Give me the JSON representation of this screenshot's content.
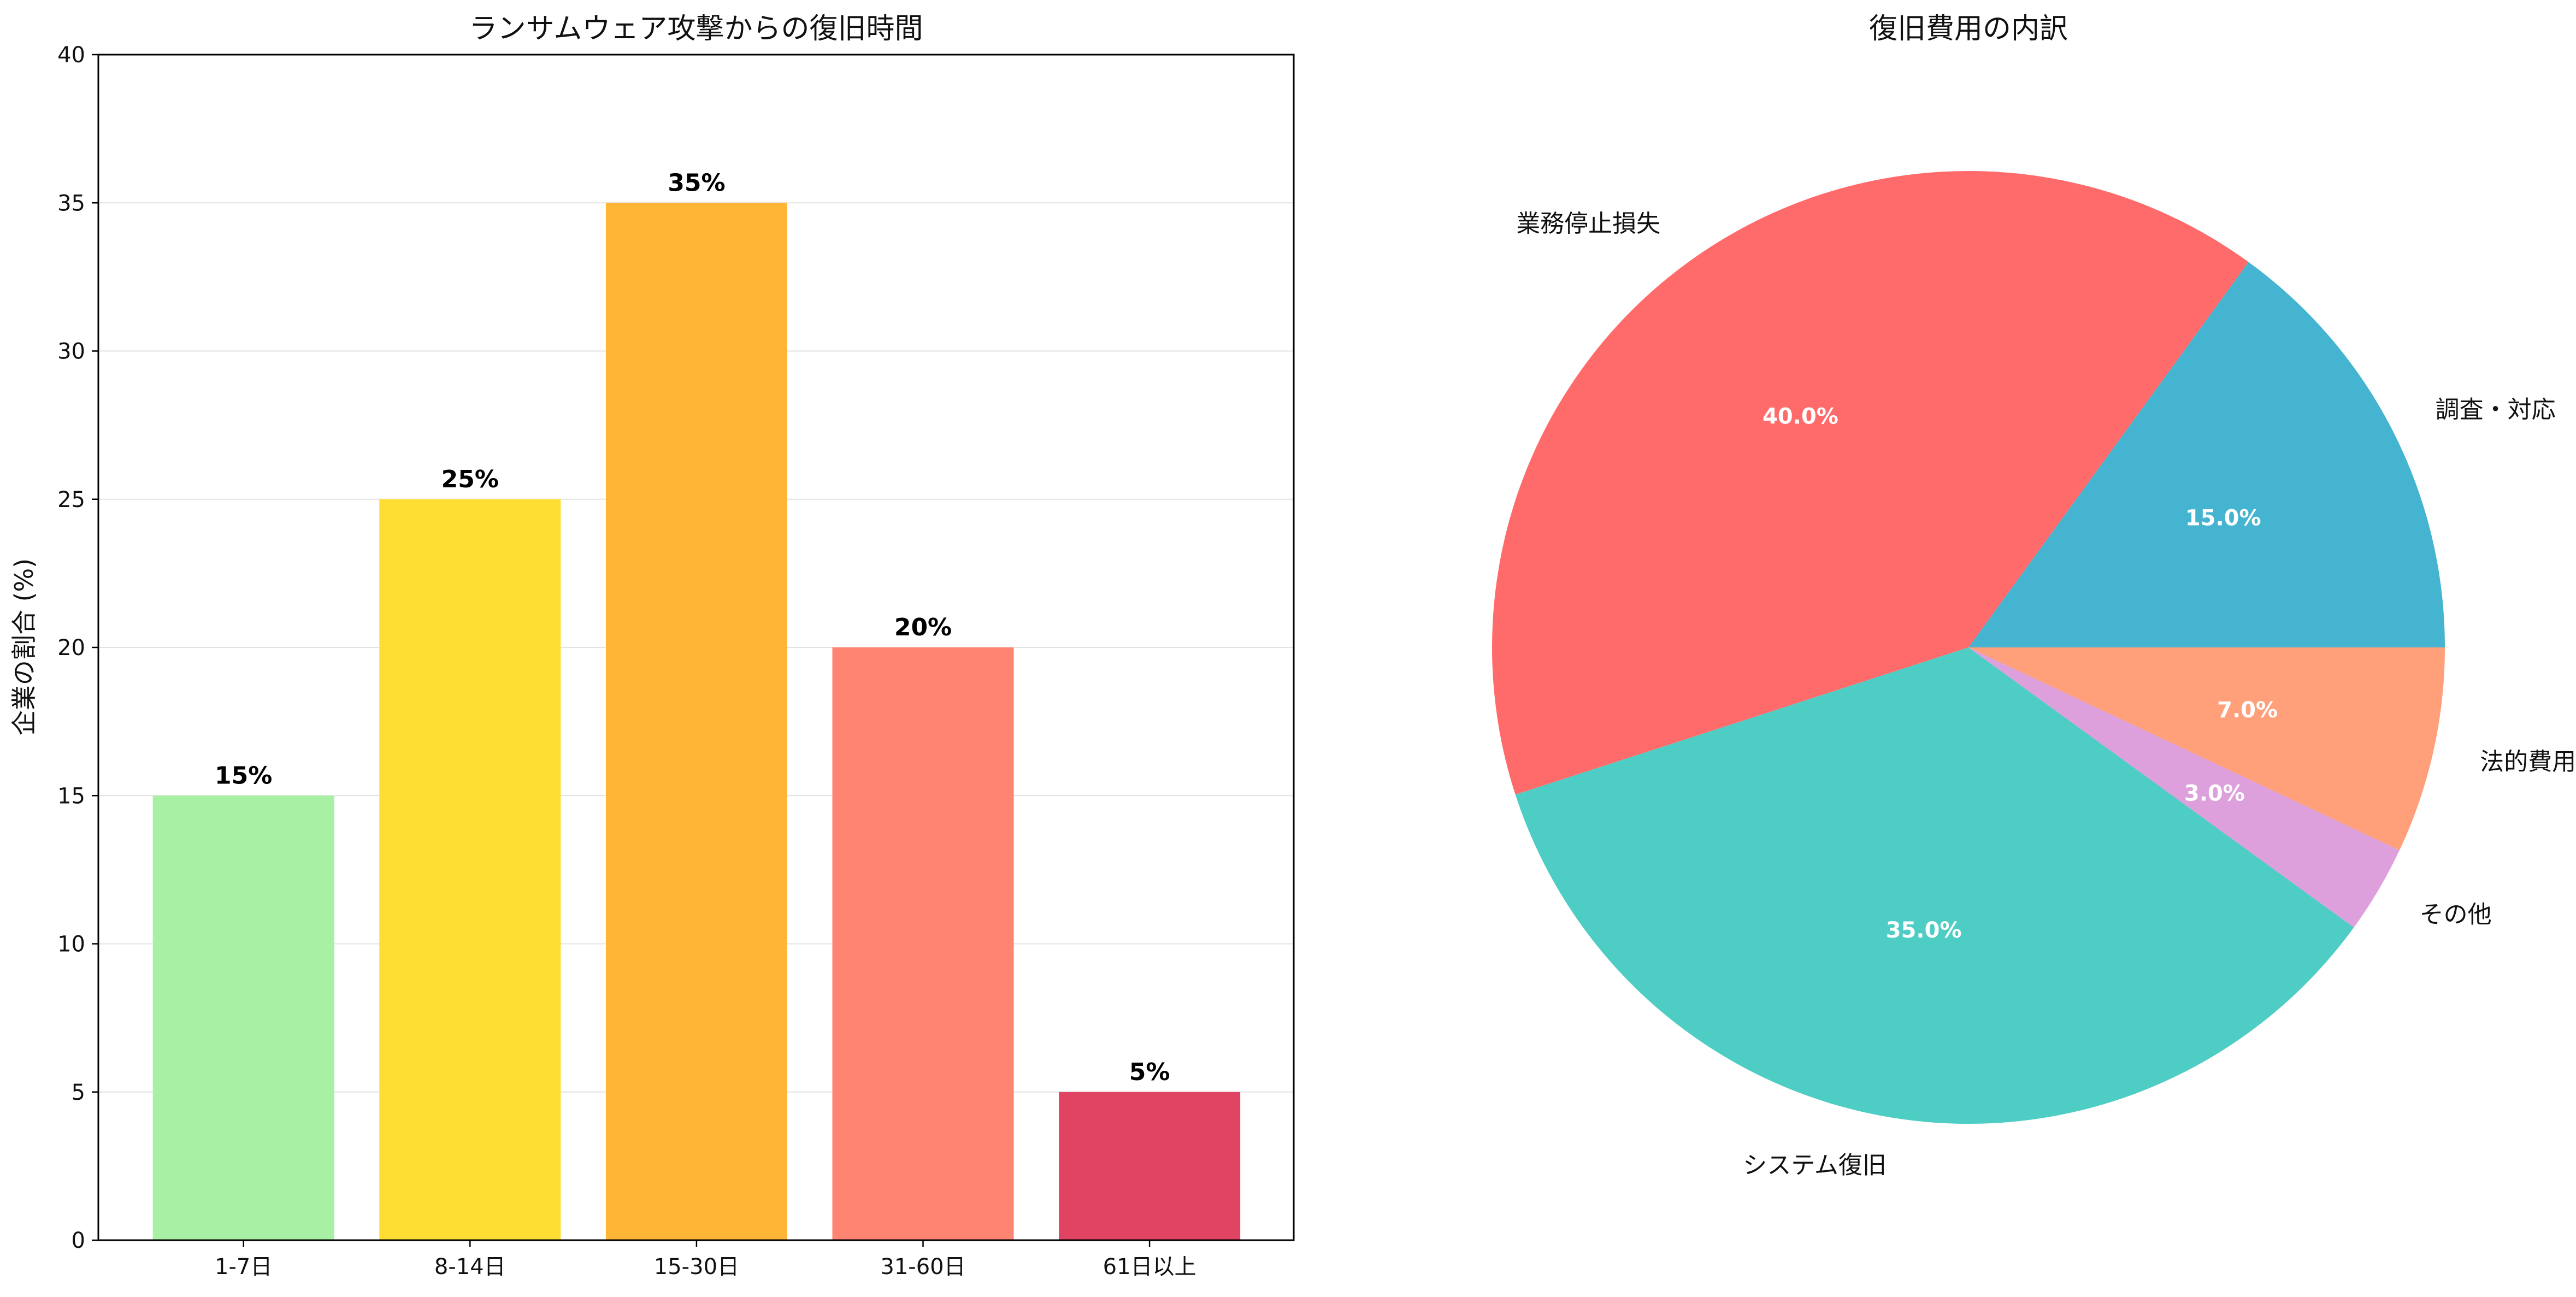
{
  "chart_data": [
    {
      "type": "bar",
      "title": "ランサムウェア攻撃からの復旧時間",
      "xlabel": "",
      "ylabel": "企業の割合 (%)",
      "categories": [
        "1-7日",
        "8-14日",
        "15-30日",
        "31-60日",
        "61日以上"
      ],
      "values": [
        15,
        25,
        35,
        20,
        5
      ],
      "value_labels": [
        "15%",
        "25%",
        "35%",
        "20%",
        "5%"
      ],
      "colors": [
        "#a8f0a3",
        "#ffde33",
        "#ffb535",
        "#ff8471",
        "#e04462"
      ],
      "ylim": [
        0,
        40
      ],
      "yticks": [
        0,
        5,
        10,
        15,
        20,
        25,
        30,
        35,
        40
      ],
      "grid": "horizontal"
    },
    {
      "type": "pie",
      "title": "復旧費用の内訳",
      "slices": [
        {
          "label": "調査・対応",
          "value": 15.0,
          "pct_label": "15.0%",
          "color": "#45b4d1"
        },
        {
          "label": "業務停止損失",
          "value": 40.0,
          "pct_label": "40.0%",
          "color": "#ff6b6b"
        },
        {
          "label": "システム復旧",
          "value": 35.0,
          "pct_label": "35.0%",
          "color": "#4ecdc4"
        },
        {
          "label": "その他",
          "value": 3.0,
          "pct_label": "3.0%",
          "color": "#dda0dd"
        },
        {
          "label": "法的費用",
          "value": 7.0,
          "pct_label": "7.0%",
          "color": "#ffa07a"
        }
      ]
    }
  ]
}
